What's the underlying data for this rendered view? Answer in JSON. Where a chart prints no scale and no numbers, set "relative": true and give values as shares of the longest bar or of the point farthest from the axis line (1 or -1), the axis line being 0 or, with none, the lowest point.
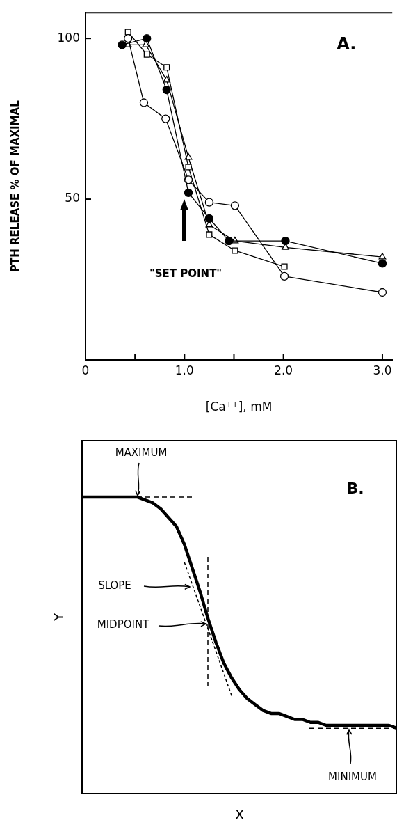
{
  "chart_data": [
    {
      "type": "line",
      "title": "A.",
      "xlabel": "[Ca⁺⁺], mM",
      "ylabel": "PTH RELEASE % OF MAXIMAL",
      "xlim": [
        0,
        3.1
      ],
      "xticks": [
        0,
        {
          "value": 0.5,
          "label": null
        },
        {
          "value": 1,
          "label": "1.0"
        },
        {
          "value": 1.5,
          "label": null
        },
        {
          "value": 2,
          "label": "2.0"
        },
        {
          "value": 3,
          "label": "3.0"
        }
      ],
      "ylim": [
        0,
        108
      ],
      "yticks": [
        50,
        100
      ],
      "grid": false,
      "legend": false,
      "line_style": "solid",
      "series": [
        {
          "color": "#000000",
          "marker": "circle",
          "x": [
            0.37,
            0.62,
            0.82,
            1.04,
            1.25,
            1.45,
            2.02,
            3.0
          ],
          "values": [
            98,
            100,
            84,
            52,
            44,
            37,
            37,
            30
          ]
        },
        {
          "color": "#000000",
          "marker": "circle",
          "x": [
            0.43,
            0.59,
            0.81,
            1.04,
            1.25,
            1.51,
            2.01,
            3.0
          ],
          "values": [
            100,
            80,
            75,
            56,
            49,
            48,
            26,
            21
          ]
        },
        {
          "color": "#000000",
          "marker": "square",
          "x": [
            0.43,
            0.62,
            0.82,
            1.04,
            1.25,
            1.51,
            2.01
          ],
          "values": [
            102,
            95,
            91,
            60,
            39,
            34,
            29
          ]
        },
        {
          "color": "#000000",
          "marker": "triangle",
          "x": [
            0.43,
            0.61,
            0.82,
            1.04,
            1.25,
            1.51,
            2.02,
            3.0
          ],
          "values": [
            98,
            98,
            87,
            63,
            42,
            37,
            35,
            32
          ]
        }
      ],
      "annotations": [
        "\"SET POINT\""
      ]
    },
    {
      "type": "line",
      "title": "B.",
      "xlabel": "X",
      "ylabel": "Y",
      "relative": true,
      "grid": false,
      "legend": false,
      "marker": "none",
      "categories": [
        null,
        null,
        null,
        null,
        null,
        null,
        null,
        null,
        null,
        null,
        null,
        null,
        null,
        null,
        null,
        null,
        null,
        null,
        null,
        null,
        null,
        null,
        null,
        null,
        null,
        null,
        null,
        null,
        null,
        null,
        null,
        null,
        null,
        null,
        null,
        null,
        null,
        null,
        null,
        null,
        null
      ],
      "series": [
        {
          "color": "#000000",
          "line_style": "solid",
          "values": [
            1.0,
            1.0,
            1.0,
            1.0,
            1.0,
            1.0,
            1.0,
            1.0,
            0.99,
            0.98,
            0.96,
            0.93,
            0.9,
            0.84,
            0.76,
            0.68,
            0.59,
            0.51,
            0.44,
            0.39,
            0.35,
            0.32,
            0.3,
            0.28,
            0.27,
            0.27,
            0.26,
            0.25,
            0.25,
            0.24,
            0.24,
            0.23,
            0.23,
            0.23,
            0.23,
            0.23,
            0.23,
            0.23,
            0.23,
            0.23,
            0.22
          ]
        },
        {
          "color": "#000000",
          "line_style": "dashed",
          "values": [
            null,
            null,
            null,
            null,
            null,
            null,
            null,
            null,
            null,
            null,
            null,
            null,
            null,
            0.78,
            null,
            null,
            null,
            null,
            null,
            0.33,
            null,
            null,
            null,
            null,
            null,
            null,
            null,
            null,
            null,
            null,
            null,
            null,
            null,
            null,
            null,
            null,
            null,
            null,
            null,
            null,
            null
          ]
        }
      ],
      "ref_lines": [
        {
          "axis": "y",
          "value": 1.0,
          "label": "MAXIMUM",
          "line_style": "dashed"
        },
        {
          "axis": "y",
          "value": 0.22,
          "label": "MINIMUM",
          "line_style": "dashed"
        }
      ],
      "annotations": [
        "SLOPE",
        "MIDPOINT"
      ]
    }
  ]
}
